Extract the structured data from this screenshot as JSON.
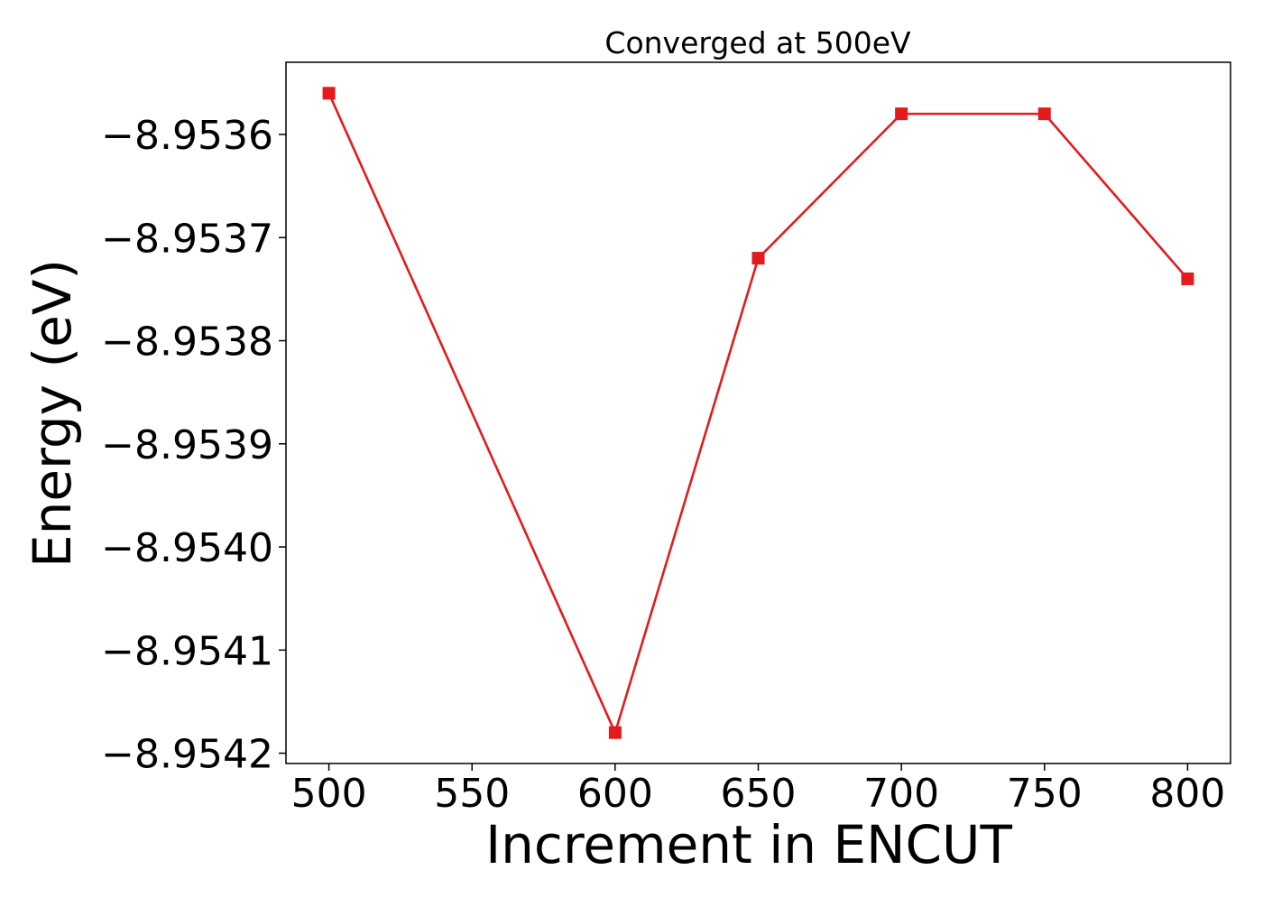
{
  "chart_data": {
    "type": "line",
    "title": "Converged at 500eV",
    "xlabel": "Increment in ENCUT",
    "ylabel": "Energy (eV)",
    "x": [
      500,
      600,
      650,
      700,
      750,
      800
    ],
    "series": [
      {
        "values": [
          -8.95356,
          -8.95418,
          -8.95372,
          -8.95358,
          -8.95358,
          -8.95374
        ],
        "color": "#e41a1c",
        "marker": "square"
      }
    ],
    "xlim": [
      485,
      815
    ],
    "ylim": [
      -8.95421,
      -8.95353
    ],
    "xticks": [
      500,
      550,
      600,
      650,
      700,
      750,
      800
    ],
    "xtick_labels": [
      "500",
      "550",
      "600",
      "650",
      "700",
      "750",
      "800"
    ],
    "yticks": [
      -8.9536,
      -8.9537,
      -8.9538,
      -8.9539,
      -8.954,
      -8.9541,
      -8.9542
    ],
    "ytick_labels": [
      "−8.9536",
      "−8.9537",
      "−8.9538",
      "−8.9539",
      "−8.9540",
      "−8.9541",
      "−8.9542"
    ],
    "grid": false,
    "legend": "none"
  }
}
